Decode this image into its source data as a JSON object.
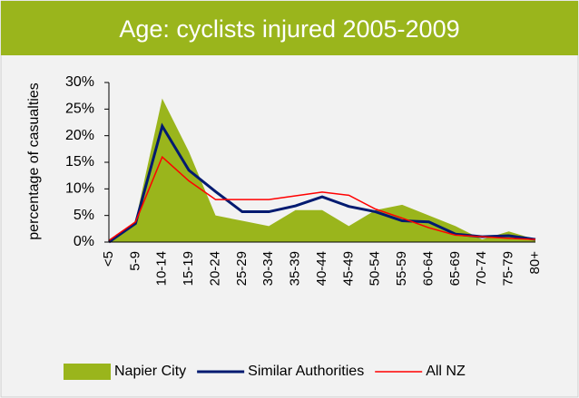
{
  "chart_data": {
    "type": "area-line",
    "title": "Age: cyclists injured 2005-2009",
    "ylabel": "percentage of casualties",
    "categories": [
      "<5",
      "5-9",
      "10-14",
      "15-19",
      "20-24",
      "25-29",
      "30-34",
      "35-39",
      "40-44",
      "45-49",
      "50-54",
      "55-59",
      "60-64",
      "65-69",
      "70-74",
      "75-79",
      "80+"
    ],
    "series": [
      {
        "name": "Napier City",
        "color": "#9ab51c",
        "kind": "area",
        "values": [
          0,
          4,
          27,
          17,
          5,
          4,
          3,
          6,
          6,
          3,
          6,
          7,
          5,
          3,
          0.5,
          2,
          0.5
        ]
      },
      {
        "name": "Similar Authorities",
        "color": "#001a70",
        "kind": "line",
        "values": [
          0,
          3.5,
          21.8,
          13.5,
          9.5,
          5.7,
          5.7,
          6.8,
          8.5,
          6.7,
          5.7,
          4,
          3.8,
          1.5,
          1,
          1.2,
          0.5
        ]
      },
      {
        "name": "All NZ",
        "color": "#ff0000",
        "kind": "line",
        "values": [
          0.3,
          3.8,
          16,
          11.5,
          8,
          8,
          8,
          8.7,
          9.4,
          8.8,
          6.2,
          4.5,
          2.7,
          1.3,
          1,
          0.7,
          0.5
        ]
      }
    ],
    "ylim": [
      0,
      30
    ],
    "yticks": [
      {
        "value": 0,
        "label": "0%"
      },
      {
        "value": 5,
        "label": "5%"
      },
      {
        "value": 10,
        "label": "10%"
      },
      {
        "value": 15,
        "label": "15%"
      },
      {
        "value": 20,
        "label": "20%"
      },
      {
        "value": 25,
        "label": "25%"
      },
      {
        "value": 30,
        "label": "30%"
      }
    ],
    "legend": "bottom"
  }
}
